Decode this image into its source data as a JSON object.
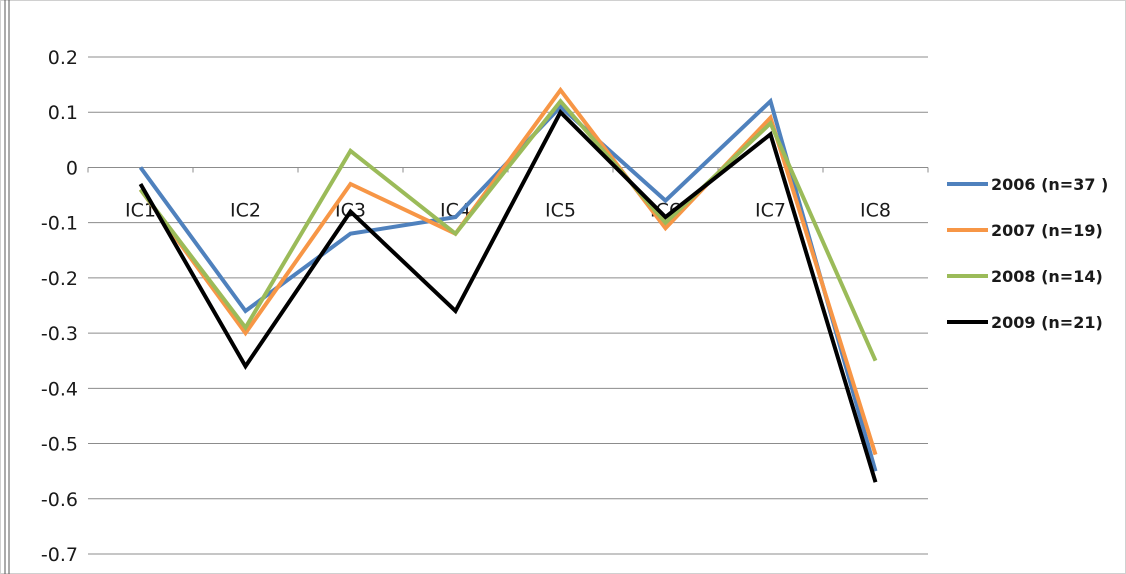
{
  "chart_data": {
    "type": "line",
    "categories": [
      "IC1",
      "IC2",
      "IC3",
      "IC4",
      "IC5",
      "IC6",
      "IC7",
      "IC8"
    ],
    "yticks": [
      "0.2",
      "0.1",
      "0",
      "-0.1",
      "-0.2",
      "-0.3",
      "-0.4",
      "-0.5",
      "-0.6",
      "-0.7"
    ],
    "ylim": [
      -0.7,
      0.2
    ],
    "grid": true,
    "legend_position": "right",
    "series": [
      {
        "name": "2006 (n=37 )",
        "color": "#4F81BD",
        "values": [
          0.0,
          -0.26,
          -0.12,
          -0.09,
          0.11,
          -0.06,
          0.12,
          -0.55
        ]
      },
      {
        "name": "2007 (n=19)",
        "color": "#F79646",
        "values": [
          -0.04,
          -0.3,
          -0.03,
          -0.12,
          0.14,
          -0.11,
          0.09,
          -0.52
        ]
      },
      {
        "name": "2008 (n=14)",
        "color": "#9BBB59",
        "values": [
          -0.04,
          -0.29,
          0.03,
          -0.12,
          0.12,
          -0.1,
          0.08,
          -0.35
        ]
      },
      {
        "name": "2009 (n=21)",
        "color": "#000000",
        "values": [
          -0.03,
          -0.36,
          -0.08,
          -0.26,
          0.1,
          -0.09,
          0.06,
          -0.57
        ]
      }
    ]
  }
}
